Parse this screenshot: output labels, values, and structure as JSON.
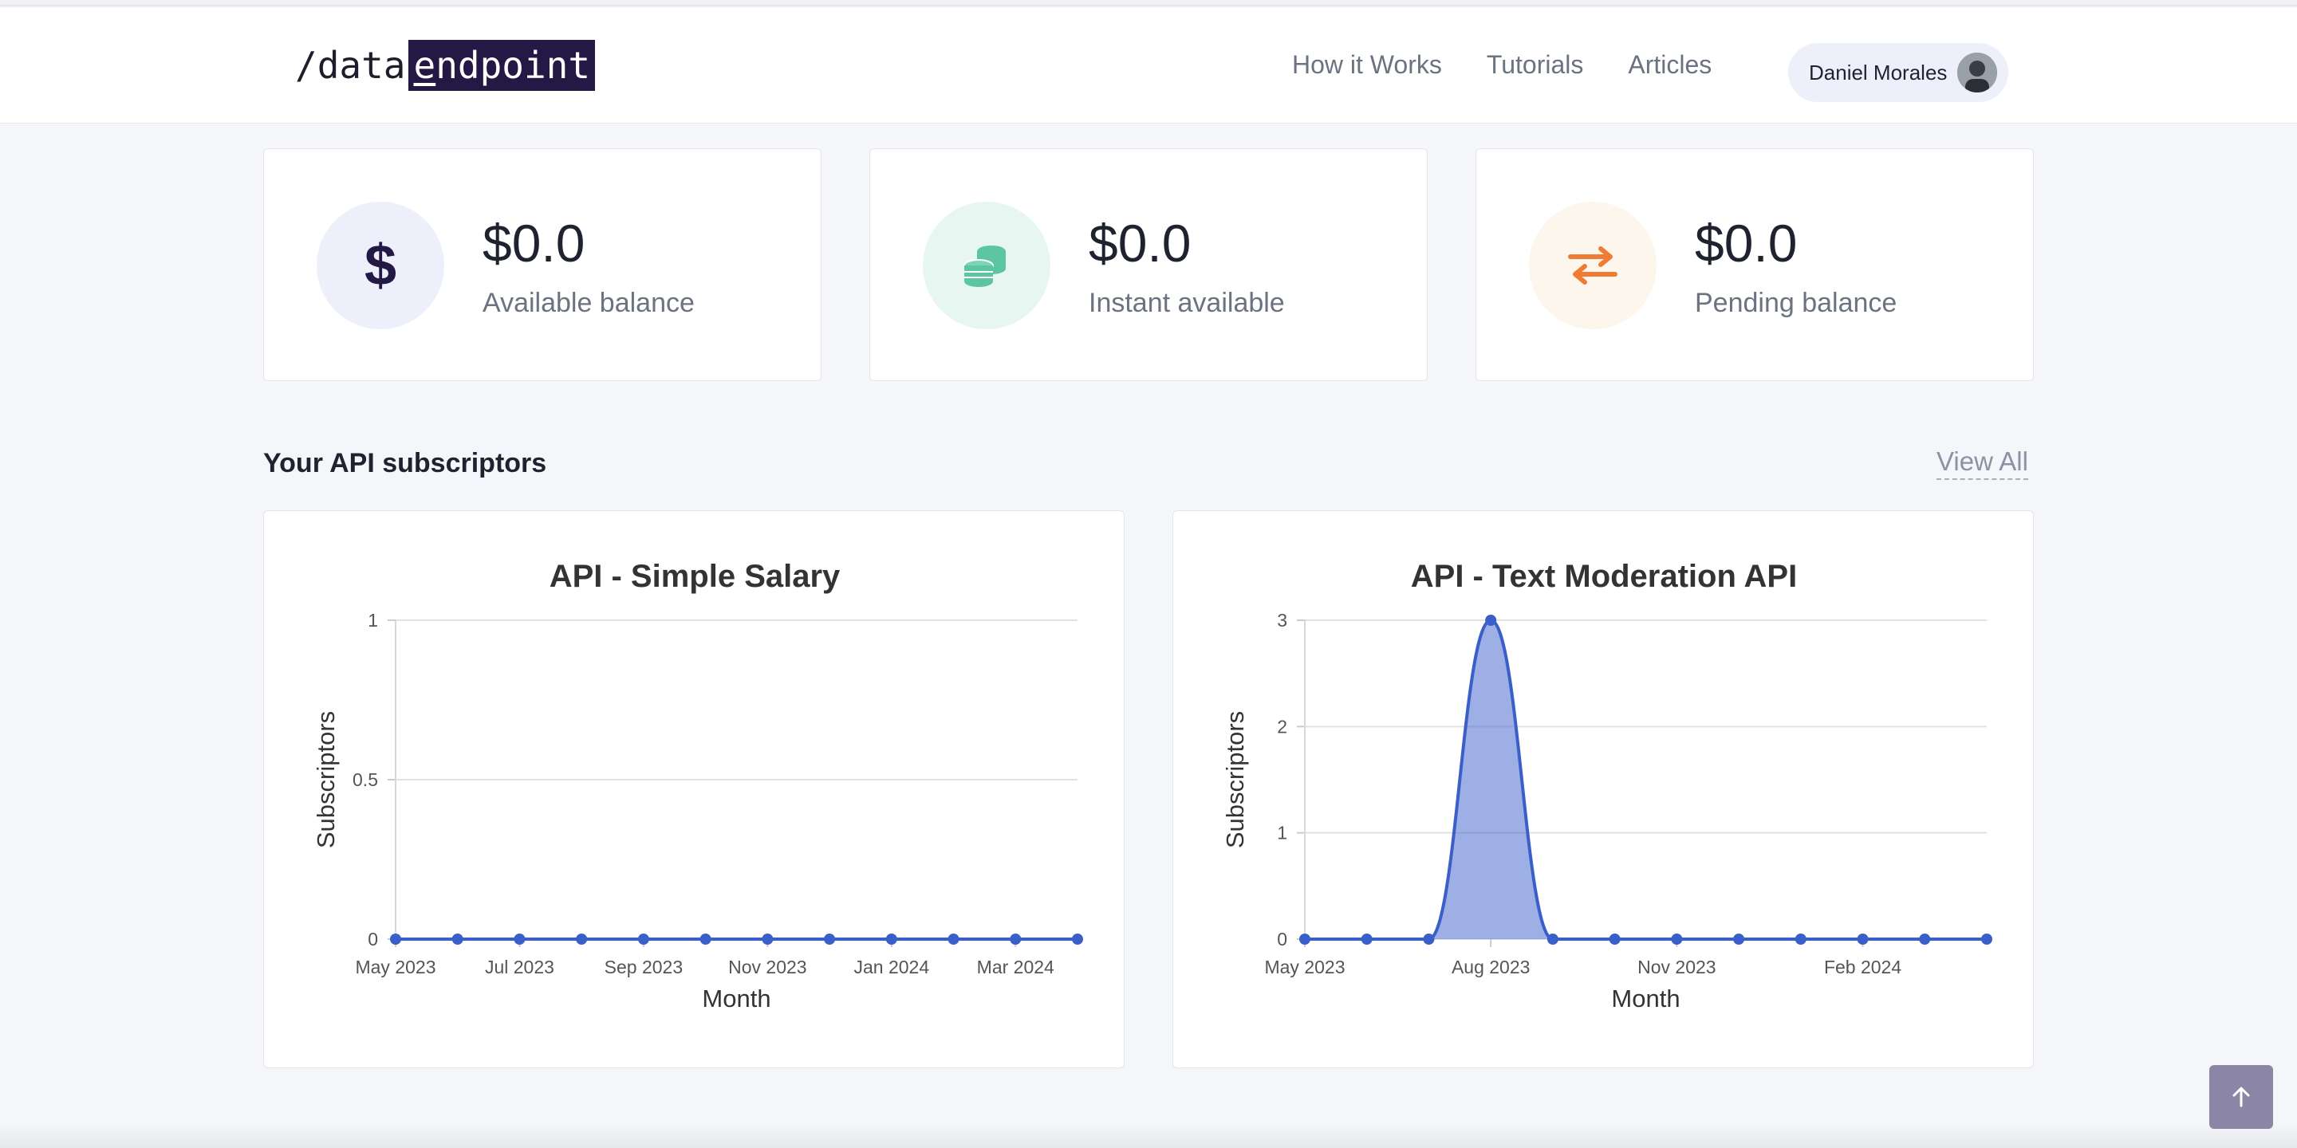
{
  "header": {
    "logo_prefix": "/data",
    "logo_highlight_first": "e",
    "logo_highlight_rest": "ndpoint",
    "nav": [
      "How it Works",
      "Tutorials",
      "Articles"
    ],
    "user_name": "Daniel Morales"
  },
  "balances": [
    {
      "value": "$0.0",
      "label": "Available balance",
      "icon": "dollar-icon",
      "icon_bg": "#edf0fb",
      "icon_color": "#241845"
    },
    {
      "value": "$0.0",
      "label": "Instant available",
      "icon": "coins-icon",
      "icon_bg": "#e8f6f1",
      "icon_color": "#5cc6a3"
    },
    {
      "value": "$0.0",
      "label": "Pending balance",
      "icon": "exchange-icon",
      "icon_bg": "#fdf6ec",
      "icon_color": "#f07b35"
    }
  ],
  "subscribers_section": {
    "title": "Your API subscriptors",
    "view_all": "View All"
  },
  "scroll_top_icon": "arrow-up-icon",
  "chart_data": [
    {
      "type": "line",
      "title": "API - Simple Salary",
      "xlabel": "Month",
      "ylabel": "Subscriptors",
      "x": [
        "May 2023",
        "Jun 2023",
        "Jul 2023",
        "Aug 2023",
        "Sep 2023",
        "Oct 2023",
        "Nov 2023",
        "Dec 2023",
        "Jan 2024",
        "Feb 2024",
        "Mar 2024",
        "Apr 2024"
      ],
      "x_ticks": [
        "May 2023",
        "Jul 2023",
        "Sep 2023",
        "Nov 2023",
        "Jan 2024",
        "Mar 2024"
      ],
      "values": [
        0,
        0,
        0,
        0,
        0,
        0,
        0,
        0,
        0,
        0,
        0,
        0
      ],
      "ylim": [
        0,
        1
      ],
      "y_ticks": [
        "0",
        "0.5",
        "1"
      ],
      "grid": true,
      "color": "#3b5fc9",
      "fill": false
    },
    {
      "type": "area",
      "title": "API - Text Moderation API",
      "xlabel": "Month",
      "ylabel": "Subscriptors",
      "x": [
        "May 2023",
        "Jun 2023",
        "Jul 2023",
        "Aug 2023",
        "Sep 2023",
        "Oct 2023",
        "Nov 2023",
        "Dec 2023",
        "Jan 2024",
        "Feb 2024",
        "Mar 2024",
        "Apr 2024"
      ],
      "x_ticks": [
        "May 2023",
        "Aug 2023",
        "Nov 2023",
        "Feb 2024"
      ],
      "values": [
        0,
        0,
        0,
        3,
        0,
        0,
        0,
        0,
        0,
        0,
        0,
        0
      ],
      "ylim": [
        0,
        3
      ],
      "y_ticks": [
        "0",
        "1",
        "2",
        "3"
      ],
      "grid": true,
      "color": "#3b5fc9",
      "fill": true
    }
  ]
}
